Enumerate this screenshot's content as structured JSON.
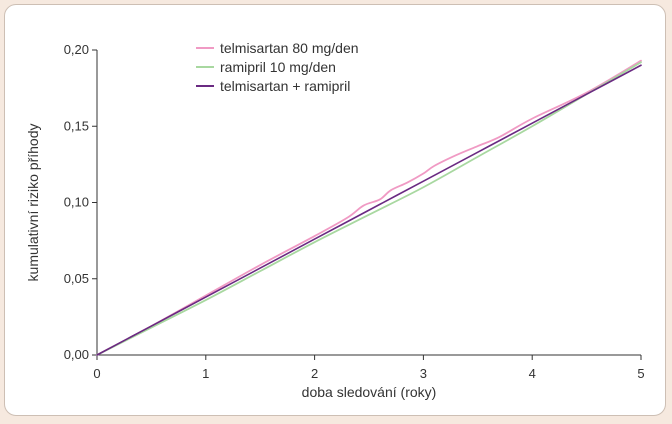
{
  "chart_data": {
    "type": "line",
    "title": "",
    "xlabel": "doba sledování (roky)",
    "ylabel": "kumulativní riziko příhody",
    "xlim": [
      0,
      5
    ],
    "ylim": [
      0,
      0.2
    ],
    "x_ticks": [
      0,
      1,
      2,
      3,
      4,
      5
    ],
    "x_tick_labels": [
      "0",
      "1",
      "2",
      "3",
      "4",
      "5"
    ],
    "y_ticks": [
      0,
      0.05,
      0.1,
      0.15,
      0.2
    ],
    "y_tick_labels": [
      "0,00",
      "0,05",
      "0,10",
      "0,15",
      "0,20"
    ],
    "grid": false,
    "legend_position": "top-left",
    "series": [
      {
        "name": "telmisartan 80 mg/den",
        "color": "#f09ac4",
        "x": [
          0,
          0.5,
          1,
          1.5,
          2,
          2.3,
          2.45,
          2.6,
          2.7,
          2.85,
          3,
          3.1,
          3.3,
          3.5,
          3.7,
          4,
          4.5,
          5
        ],
        "y": [
          0,
          0.019,
          0.039,
          0.059,
          0.078,
          0.09,
          0.098,
          0.102,
          0.108,
          0.113,
          0.119,
          0.124,
          0.131,
          0.137,
          0.143,
          0.155,
          0.172,
          0.193
        ]
      },
      {
        "name": "ramipril 10 mg/den",
        "color": "#a8d8a0",
        "x": [
          0,
          0.5,
          1,
          1.5,
          2,
          2.5,
          3,
          3.5,
          4,
          4.5,
          5
        ],
        "y": [
          0,
          0.018,
          0.036,
          0.055,
          0.074,
          0.092,
          0.11,
          0.13,
          0.15,
          0.171,
          0.192
        ]
      },
      {
        "name": "telmisartan + ramipril",
        "color": "#6a2a82",
        "x": [
          0,
          0.5,
          1,
          1.5,
          2,
          2.5,
          3,
          3.5,
          4,
          4.5,
          5
        ],
        "y": [
          0,
          0.019,
          0.038,
          0.057,
          0.076,
          0.095,
          0.114,
          0.133,
          0.152,
          0.171,
          0.19
        ]
      }
    ]
  }
}
